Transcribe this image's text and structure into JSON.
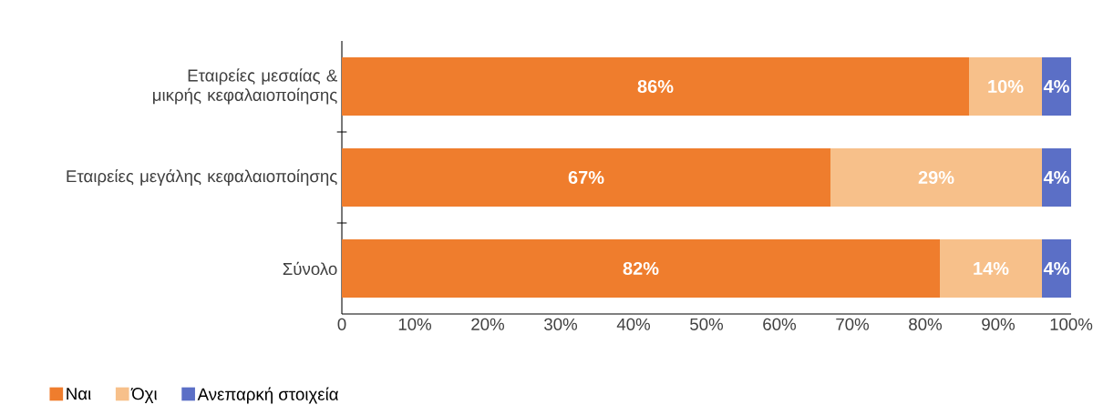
{
  "chart_data": {
    "type": "bar",
    "orientation": "horizontal",
    "stacked": true,
    "categories": [
      "Εταιρείες μεσαίας & μικρής κεφαλαιοποίησης",
      "Εταιρείες μεγάλης κεφαλαιοποίησης",
      "Σύνολο"
    ],
    "series": [
      {
        "name": "Ναι",
        "color": "#ef7d2d",
        "values": [
          86,
          67,
          82
        ],
        "value_labels": [
          "86%",
          "67%",
          "82%"
        ]
      },
      {
        "name": "Όχι",
        "color": "#f7c08a",
        "values": [
          10,
          29,
          14
        ],
        "value_labels": [
          "10%",
          "29%",
          "14%"
        ]
      },
      {
        "name": "Ανεπαρκή στοιχεία",
        "color": "#5b6fc6",
        "values": [
          4,
          4,
          4
        ],
        "value_labels": [
          "4%",
          "4%",
          "4%"
        ]
      }
    ],
    "xlim": [
      0,
      100
    ],
    "xticks": [
      0,
      {
        "value": 10,
        "label": "10%"
      },
      {
        "value": 20,
        "label": "20%"
      },
      {
        "value": 30,
        "label": "30%"
      },
      {
        "value": 40,
        "label": "40%"
      },
      {
        "value": 50,
        "label": "50%"
      },
      {
        "value": 60,
        "label": "60%"
      },
      {
        "value": 70,
        "label": "70%"
      },
      {
        "value": 80,
        "label": "80%"
      },
      {
        "value": 90,
        "label": "90%"
      },
      {
        "value": 100,
        "label": "100%"
      }
    ],
    "legend": "bottom left"
  }
}
